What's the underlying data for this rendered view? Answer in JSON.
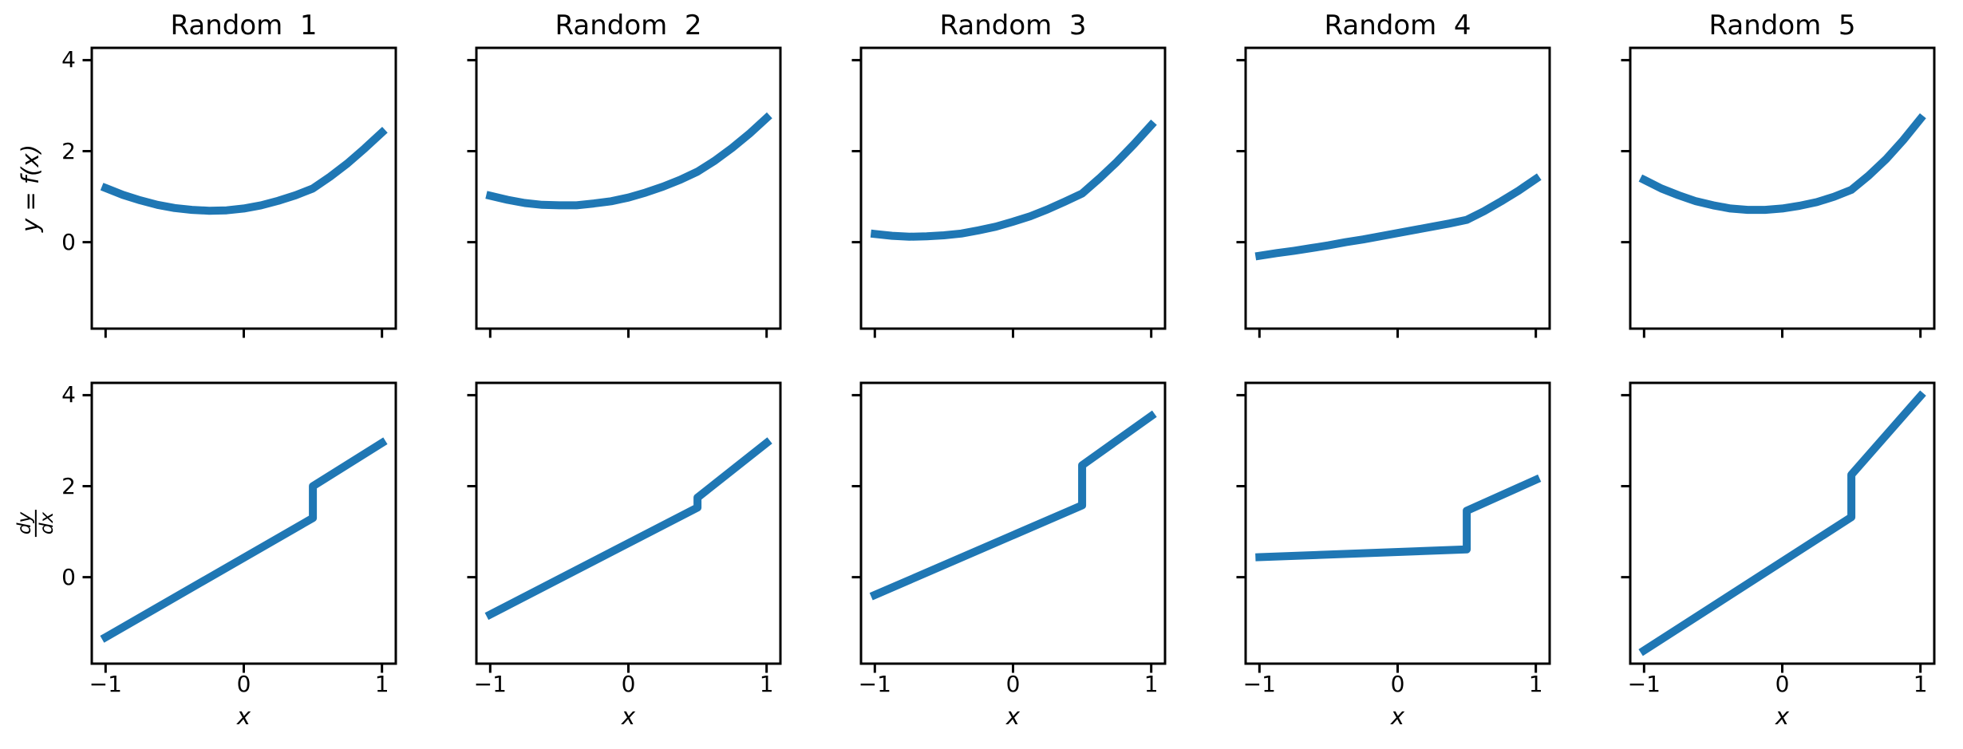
{
  "figure": {
    "background": "#ffffff",
    "line_color": "#1f77b4",
    "axis_color": "#000000",
    "xlabel": "x",
    "row1_ylabel": "y = f(x)",
    "row2_ylabel_numerator": "dy",
    "row2_ylabel_denominator": "dx",
    "axes": {
      "xlim": [
        -1.1,
        1.1
      ],
      "ylim": [
        -1.9,
        4.27
      ],
      "xticks": {
        "values": [
          -1,
          0,
          1
        ],
        "labels": [
          "−1",
          "0",
          "1"
        ]
      },
      "yticks": {
        "values": [
          0,
          2,
          4
        ],
        "labels": [
          "0",
          "2",
          "4"
        ]
      }
    }
  },
  "chart_data": [
    {
      "id": "random-1-f",
      "type": "line",
      "row": "f",
      "col": 1,
      "title": "Random  1",
      "xlabel": "",
      "ylabel": "y = f(x)",
      "x": [
        -1,
        -0.875,
        -0.75,
        -0.625,
        -0.5,
        -0.375,
        -0.25,
        -0.125,
        0,
        0.125,
        0.25,
        0.375,
        0.5,
        0.625,
        0.75,
        0.875,
        1
      ],
      "y": [
        1.19,
        1.04,
        0.92,
        0.82,
        0.75,
        0.71,
        0.69,
        0.7,
        0.74,
        0.81,
        0.91,
        1.03,
        1.18,
        1.44,
        1.73,
        2.06,
        2.41
      ]
    },
    {
      "id": "random-2-f",
      "type": "line",
      "row": "f",
      "col": 2,
      "title": "Random  2",
      "xlabel": "",
      "ylabel": "",
      "x": [
        -1,
        -0.875,
        -0.75,
        -0.625,
        -0.5,
        -0.375,
        -0.25,
        -0.125,
        0,
        0.125,
        0.25,
        0.375,
        0.5,
        0.625,
        0.75,
        0.875,
        1
      ],
      "y": [
        1.02,
        0.93,
        0.86,
        0.82,
        0.81,
        0.81,
        0.85,
        0.9,
        0.98,
        1.09,
        1.22,
        1.37,
        1.55,
        1.79,
        2.07,
        2.38,
        2.73
      ]
    },
    {
      "id": "random-3-f",
      "type": "line",
      "row": "f",
      "col": 3,
      "title": "Random  3",
      "xlabel": "",
      "ylabel": "",
      "x": [
        -1,
        -0.875,
        -0.75,
        -0.625,
        -0.5,
        -0.375,
        -0.25,
        -0.125,
        0,
        0.125,
        0.25,
        0.375,
        0.5,
        0.625,
        0.75,
        0.875,
        1
      ],
      "y": [
        0.18,
        0.14,
        0.12,
        0.13,
        0.15,
        0.19,
        0.26,
        0.34,
        0.45,
        0.57,
        0.72,
        0.89,
        1.07,
        1.4,
        1.76,
        2.15,
        2.57
      ]
    },
    {
      "id": "random-4-f",
      "type": "line",
      "row": "f",
      "col": 4,
      "title": "Random  4",
      "xlabel": "",
      "ylabel": "",
      "x": [
        -1,
        -0.875,
        -0.75,
        -0.625,
        -0.5,
        -0.375,
        -0.25,
        -0.125,
        0,
        0.125,
        0.25,
        0.375,
        0.5,
        0.625,
        0.75,
        0.875,
        1
      ],
      "y": [
        -0.3,
        -0.24,
        -0.19,
        -0.13,
        -0.07,
        0.0,
        0.06,
        0.13,
        0.2,
        0.27,
        0.34,
        0.41,
        0.49,
        0.68,
        0.9,
        1.13,
        1.39
      ]
    },
    {
      "id": "random-5-f",
      "type": "line",
      "row": "f",
      "col": 5,
      "title": "Random  5",
      "xlabel": "",
      "ylabel": "",
      "x": [
        -1,
        -0.875,
        -0.75,
        -0.625,
        -0.5,
        -0.375,
        -0.25,
        -0.125,
        0,
        0.125,
        0.25,
        0.375,
        0.5,
        0.625,
        0.75,
        0.875,
        1
      ],
      "y": [
        1.37,
        1.18,
        1.03,
        0.9,
        0.81,
        0.74,
        0.71,
        0.71,
        0.74,
        0.8,
        0.88,
        1.0,
        1.15,
        1.46,
        1.82,
        2.24,
        2.71
      ]
    },
    {
      "id": "random-1-dfdx",
      "type": "line",
      "row": "dfdx",
      "col": 1,
      "title": "",
      "xlabel": "x",
      "ylabel": "dy/dx",
      "x": [
        -1,
        0.5,
        0.5,
        1
      ],
      "y": [
        -1.32,
        1.3,
        2.0,
        2.95
      ]
    },
    {
      "id": "random-2-dfdx",
      "type": "line",
      "row": "dfdx",
      "col": 2,
      "title": "",
      "xlabel": "x",
      "ylabel": "",
      "x": [
        -1,
        0.5,
        0.5,
        1
      ],
      "y": [
        -0.82,
        1.53,
        1.75,
        2.95
      ]
    },
    {
      "id": "random-3-dfdx",
      "type": "line",
      "row": "dfdx",
      "col": 3,
      "title": "",
      "xlabel": "x",
      "ylabel": "",
      "x": [
        -1,
        0.5,
        0.5,
        1
      ],
      "y": [
        -0.39,
        1.58,
        2.46,
        3.54
      ]
    },
    {
      "id": "random-4-dfdx",
      "type": "line",
      "row": "dfdx",
      "col": 4,
      "title": "",
      "xlabel": "x",
      "ylabel": "",
      "x": [
        -1,
        0.5,
        0.5,
        1
      ],
      "y": [
        0.44,
        0.61,
        1.46,
        2.14
      ]
    },
    {
      "id": "random-5-dfdx",
      "type": "line",
      "row": "dfdx",
      "col": 5,
      "title": "",
      "xlabel": "x",
      "ylabel": "",
      "x": [
        -1,
        0.5,
        0.5,
        1
      ],
      "y": [
        -1.61,
        1.32,
        2.25,
        3.98
      ]
    }
  ]
}
